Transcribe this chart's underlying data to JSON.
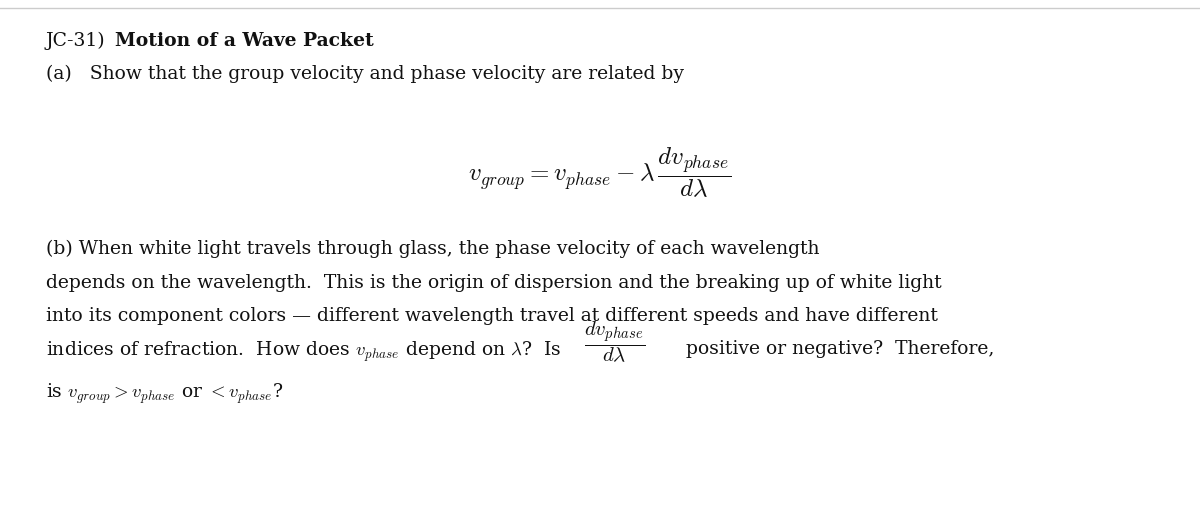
{
  "fig_width": 12.0,
  "fig_height": 5.2,
  "dpi": 100,
  "bg_color": "#ffffff",
  "border_color": "#cccccc",
  "text_color": "#111111",
  "title_normal": "JC-31)  ",
  "title_bold": "Motion of a Wave Packet",
  "part_a_text": "(a)   Show that the group velocity and phase velocity are related by",
  "part_b_line1": "(b) When white light travels through glass, the phase velocity of each wavelength",
  "part_b_line2": "depends on the wavelength.  This is the origin of dispersion and the breaking up of white light",
  "part_b_line3": "into its component colors — different wavelength travel at different speeds and have different",
  "part_b_line4_pre": "indices of refraction.  How does $v_{phase}$ depend on $\\lambda$?  Is —————— positive or negative?  Therefore,",
  "part_b_line5": "is $v_{group} > v_{phase}$ or $< v_{phase}$?"
}
